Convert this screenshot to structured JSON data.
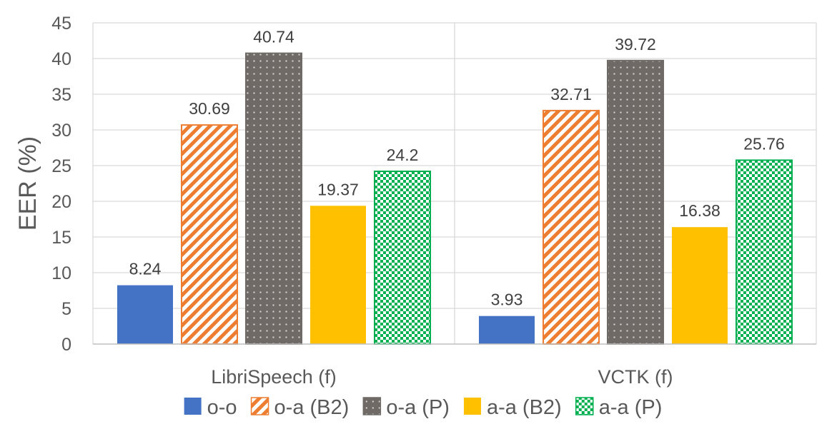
{
  "chart_data": {
    "type": "bar",
    "title": "",
    "xlabel": "",
    "ylabel": "EER (%)",
    "ylim": [
      0,
      45
    ],
    "yticks": [
      0,
      5,
      10,
      15,
      20,
      25,
      30,
      35,
      40,
      45
    ],
    "grid": true,
    "legend_position": "bottom",
    "categories": [
      "LibriSpeech (f)",
      "VCTK (f)"
    ],
    "series": [
      {
        "name": "o-o",
        "values": [
          8.24,
          3.93
        ],
        "labels": [
          "8.24",
          "3.93"
        ],
        "color": "#4472C4",
        "pattern": "solid"
      },
      {
        "name": "o-a (B2)",
        "values": [
          30.69,
          32.71
        ],
        "labels": [
          "30.69",
          "32.71"
        ],
        "color": "#ED7D31",
        "pattern": "diagonal-stripes"
      },
      {
        "name": "o-a (P)",
        "values": [
          40.74,
          39.72
        ],
        "labels": [
          "40.74",
          "39.72"
        ],
        "color": "#6F6A66",
        "pattern": "dots"
      },
      {
        "name": "a-a (B2)",
        "values": [
          19.37,
          16.38
        ],
        "labels": [
          "19.37",
          "16.38"
        ],
        "color": "#FFC000",
        "pattern": "solid"
      },
      {
        "name": "a-a (P)",
        "values": [
          24.2,
          25.76
        ],
        "labels": [
          "24.2",
          "25.76"
        ],
        "color": "#00B050",
        "pattern": "checkerboard"
      }
    ]
  }
}
